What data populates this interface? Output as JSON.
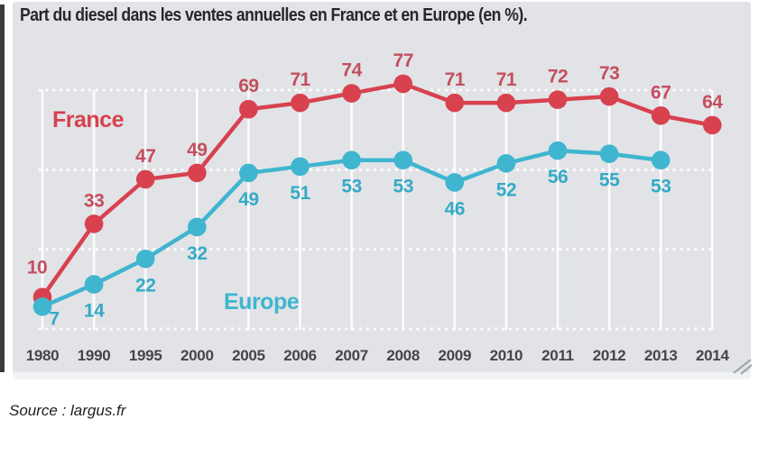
{
  "title": "Part du diesel dans les ventes annuelles en France et en Europe (en %).",
  "source": "Source : largus.fr",
  "colors": {
    "france_line": "#d8414e",
    "france_text": "#c44f5d",
    "europe_line": "#3fb5cf",
    "europe_text": "#35aac6",
    "panel_bg": "#e1e3e7",
    "grid": "#ffffff",
    "axis_text": "#45454d",
    "title_text": "#26262c",
    "grip": "#9ba1a9"
  },
  "chart_data": {
    "type": "line",
    "title": "Part du diesel dans les ventes annuelles en France et en Europe (en %).",
    "categories": [
      "1980",
      "1990",
      "1995",
      "2000",
      "2005",
      "2006",
      "2007",
      "2008",
      "2009",
      "2010",
      "2011",
      "2012",
      "2013",
      "2014"
    ],
    "series": [
      {
        "name": "France",
        "values": [
          10,
          33,
          47,
          49,
          69,
          71,
          74,
          77,
          71,
          71,
          72,
          73,
          67,
          64
        ]
      },
      {
        "name": "Europe",
        "values": [
          7,
          14,
          22,
          32,
          49,
          51,
          53,
          53,
          46,
          52,
          56,
          55,
          53,
          null
        ]
      }
    ],
    "xlabel": "",
    "ylabel": "",
    "ylim": [
      0,
      80
    ],
    "y_gridlines": [
      0,
      25,
      50,
      75
    ],
    "grid": "horizontal-dotted-and-vertical-solid",
    "legend_position": "inline-labels",
    "data_labels": true
  }
}
